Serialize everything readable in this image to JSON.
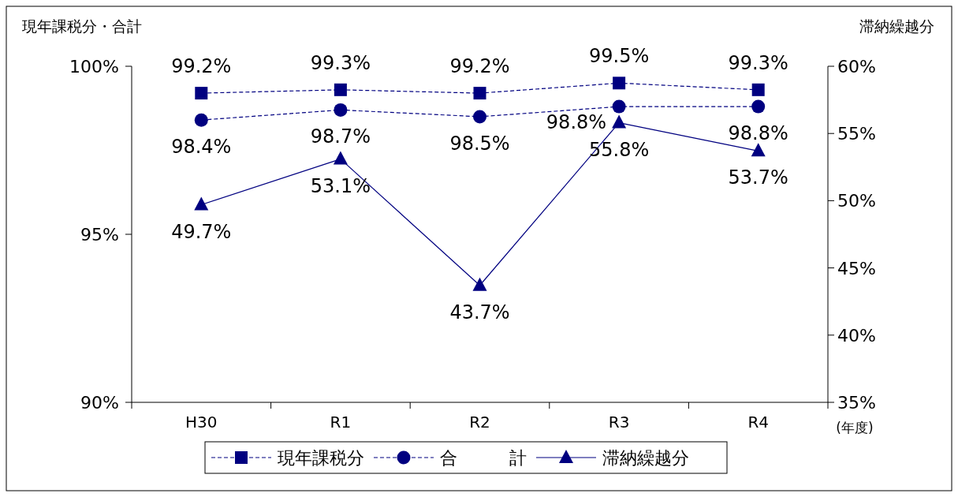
{
  "chart_data": {
    "type": "line",
    "ylabel": "現年課税分・合計",
    "y2label": "滞納繰越分",
    "xlabel": "(年度)",
    "categories": [
      "H30",
      "R1",
      "R2",
      "R3",
      "R4"
    ],
    "ylim": [
      90,
      100
    ],
    "yticks": [
      {
        "value": 90,
        "label": "90%"
      },
      {
        "value": 95,
        "label": "95%"
      },
      {
        "value": 100,
        "label": "100%"
      }
    ],
    "y2lim": [
      35,
      60
    ],
    "y2ticks": [
      {
        "value": 35,
        "label": "35%"
      },
      {
        "value": 40,
        "label": "40%"
      },
      {
        "value": 45,
        "label": "45%"
      },
      {
        "value": 50,
        "label": "50%"
      },
      {
        "value": 55,
        "label": "55%"
      },
      {
        "value": 60,
        "label": "60%"
      }
    ],
    "legend": "bottom",
    "series": [
      {
        "name": "現年課税分",
        "color": "#000080",
        "marker": "square",
        "line_style": "dashed",
        "values": [
          99.2,
          99.3,
          99.2,
          99.5,
          99.3
        ],
        "value_labels": [
          "99.2%",
          "99.3%",
          "99.2%",
          "99.5%",
          "99.3%"
        ]
      },
      {
        "name": "合　　　計",
        "color": "#000080",
        "marker": "circle",
        "line_style": "dashed",
        "values": [
          98.4,
          98.7,
          98.5,
          98.8,
          98.8
        ],
        "value_labels": [
          "98.4%",
          "98.7%",
          "98.5%",
          "98.8%",
          "98.8%"
        ]
      },
      {
        "name": "滞納繰越分",
        "color": "#000080",
        "marker": "triangle",
        "line_style": "solid",
        "axis": "y2",
        "values": [
          49.7,
          53.1,
          43.7,
          55.8,
          53.7
        ],
        "value_labels": [
          "49.7%",
          "53.1%",
          "43.7%",
          "55.8%",
          "53.7%"
        ]
      }
    ]
  }
}
